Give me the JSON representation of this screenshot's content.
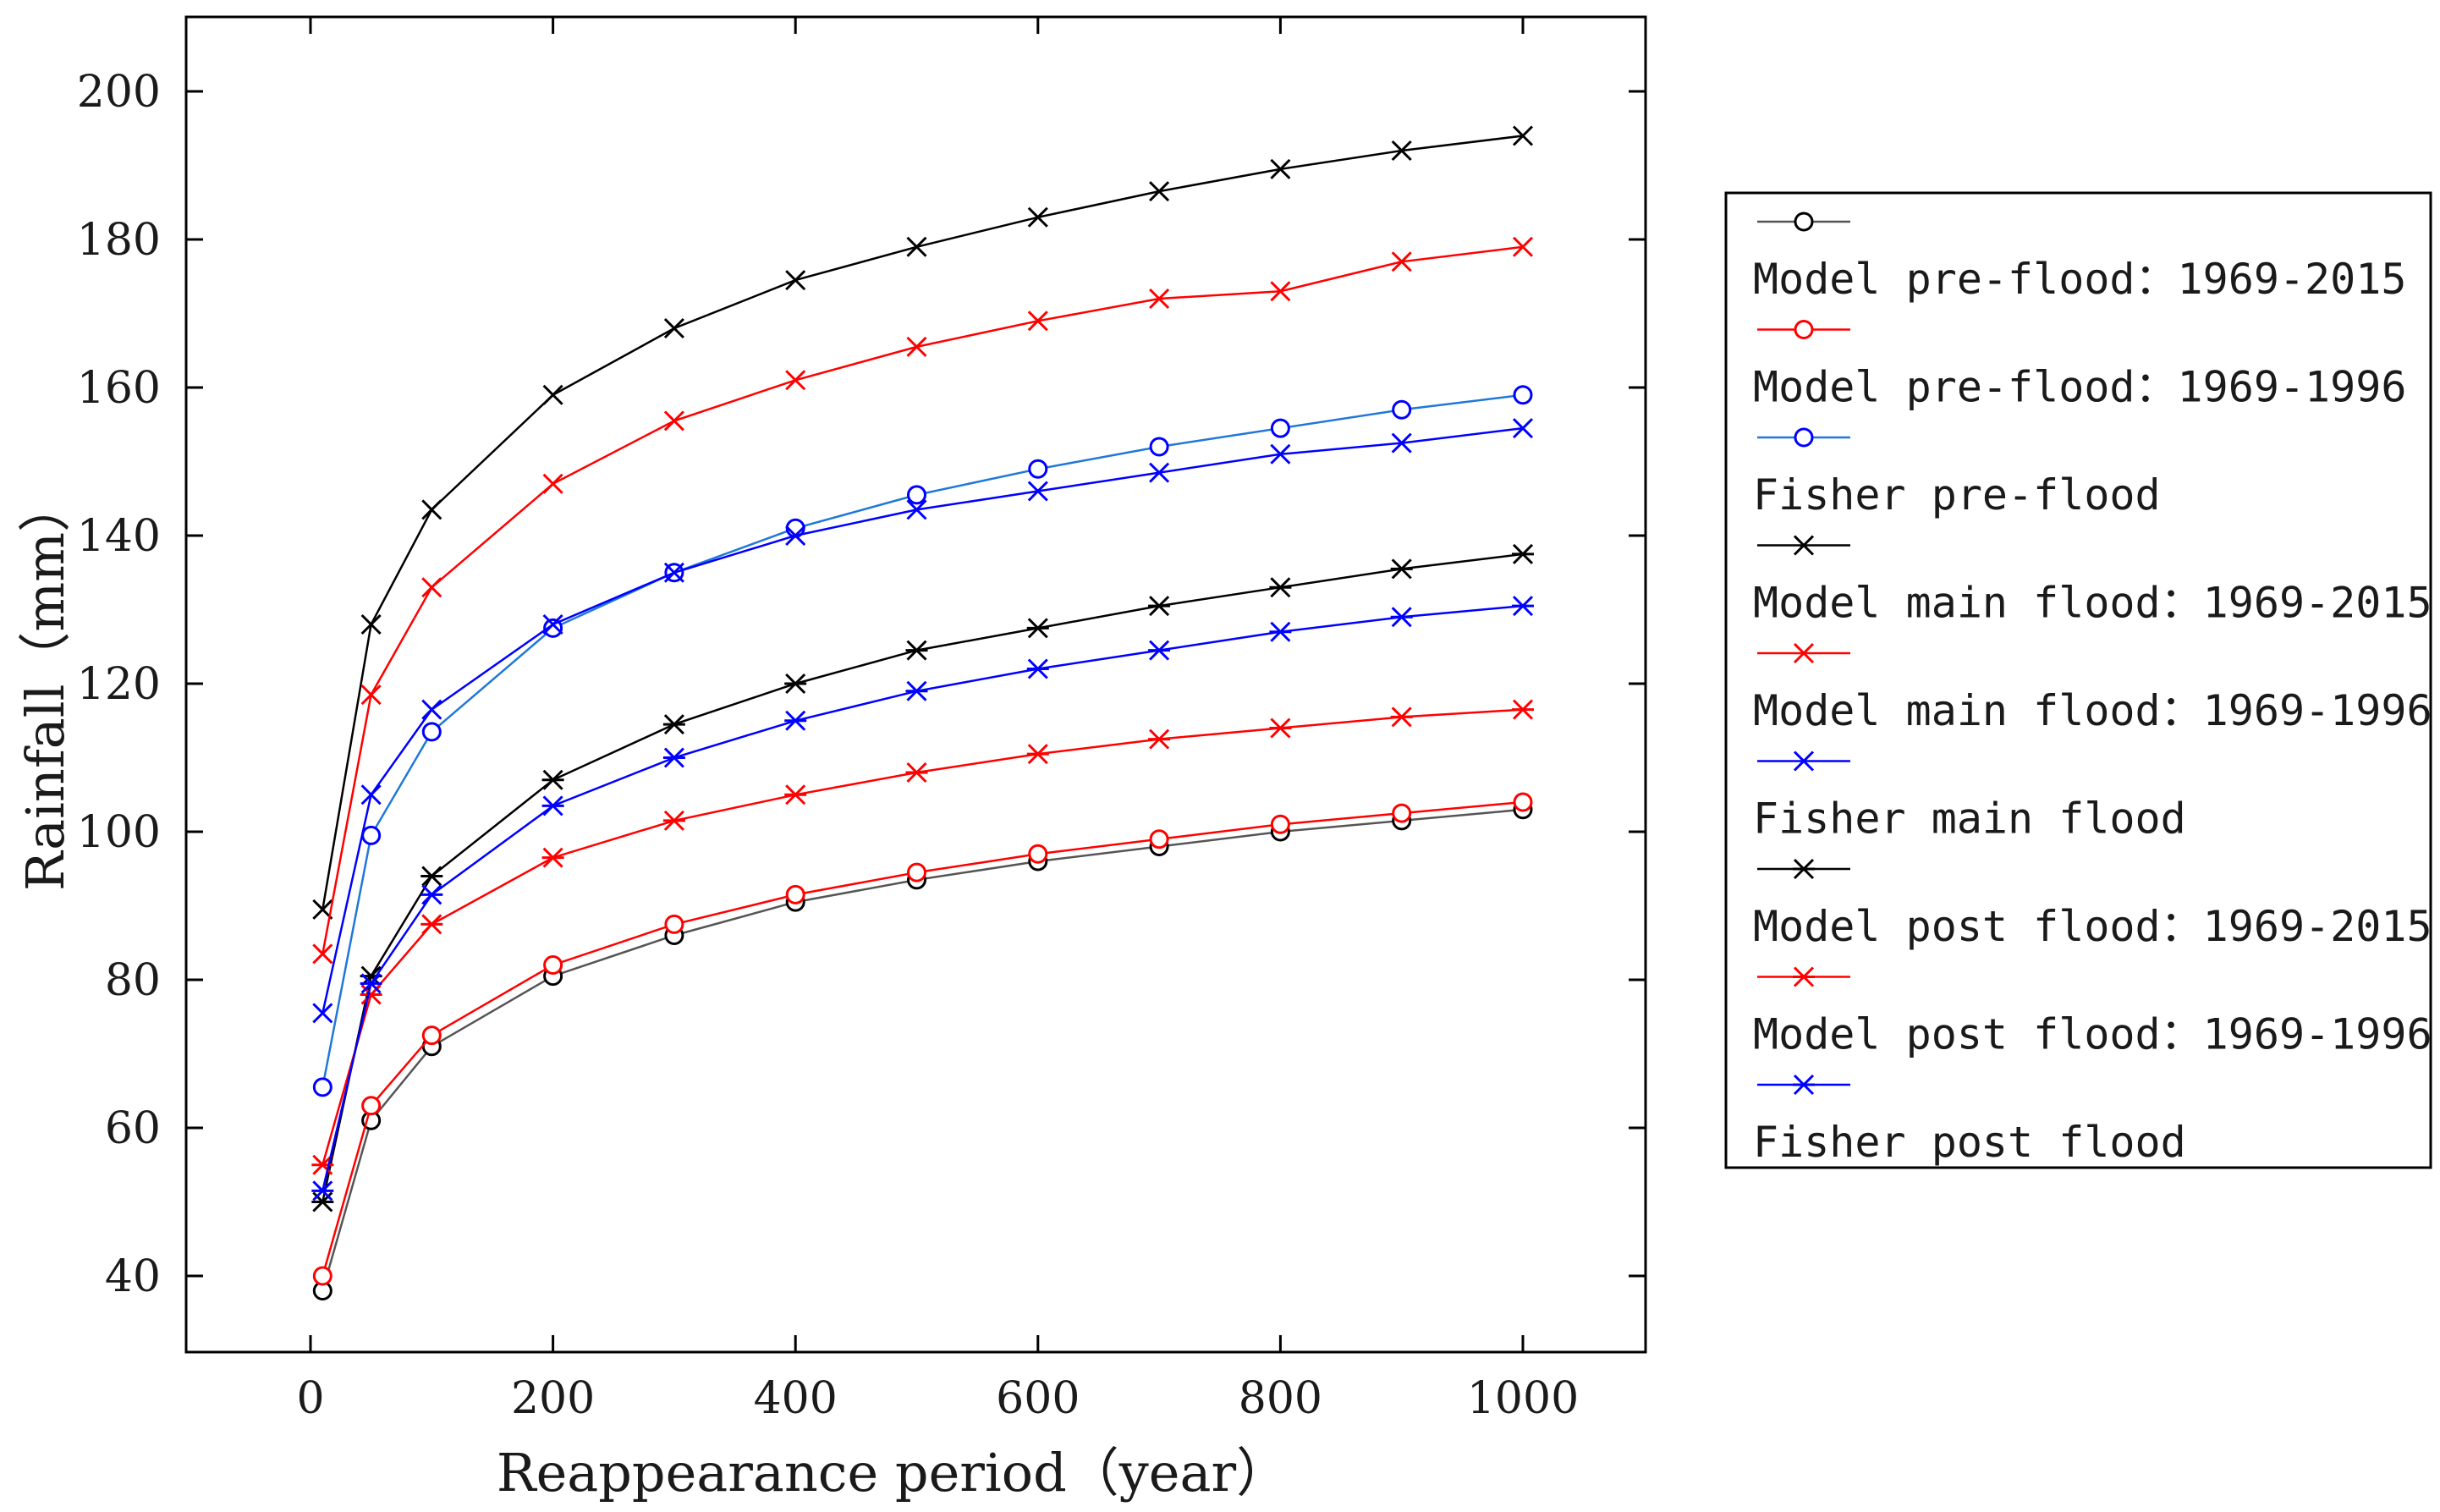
{
  "chart_data": {
    "type": "line",
    "title": "",
    "xlabel": "Reappearance period（year）",
    "ylabel": "Rainfall（mm）",
    "xlim": [
      -100,
      1100
    ],
    "ylim": [
      30,
      210
    ],
    "xticks": [
      0,
      200,
      400,
      600,
      800,
      1000
    ],
    "yticks": [
      40,
      60,
      80,
      100,
      120,
      140,
      160,
      180,
      200
    ],
    "x": [
      10,
      50,
      100,
      200,
      300,
      400,
      500,
      600,
      700,
      800,
      900,
      1000
    ],
    "legend_position": "right",
    "series": [
      {
        "name": "Model pre-flood: 1969-2015",
        "label": "Model pre-flood：1969-2015",
        "color": "#000000",
        "line_color": "#555555",
        "marker": "circle",
        "values": [
          38.0,
          61.0,
          71.0,
          80.5,
          86.0,
          90.5,
          93.5,
          96.0,
          98.0,
          100.0,
          101.5,
          103.0
        ]
      },
      {
        "name": "Model pre-flood: 1969-1996",
        "label": "Model pre-flood：1969-1996",
        "color": "#ff0000",
        "line_color": "#ff0000",
        "marker": "circle",
        "values": [
          40.0,
          63.0,
          72.5,
          82.0,
          87.5,
          91.5,
          94.5,
          97.0,
          99.0,
          101.0,
          102.5,
          104.0
        ]
      },
      {
        "name": "Fisher pre-flood",
        "label": "Fisher pre-flood",
        "color": "#0000ff",
        "line_color": "#1f78d8",
        "marker": "circle",
        "values": [
          65.5,
          99.5,
          113.5,
          127.5,
          135.0,
          141.0,
          145.5,
          149.0,
          152.0,
          154.5,
          157.0,
          159.0
        ]
      },
      {
        "name": "Model main flood: 1969-2015",
        "label": "Model main flood：1969-2015",
        "color": "#000000",
        "line_color": "#000000",
        "marker": "x",
        "values": [
          89.5,
          128.0,
          143.5,
          159.0,
          168.0,
          174.5,
          179.0,
          183.0,
          186.5,
          189.5,
          192.0,
          194.0
        ]
      },
      {
        "name": "Model main flood: 1969-1996",
        "label": "Model main flood：1969-1996",
        "color": "#ff0000",
        "line_color": "#ff0000",
        "marker": "x",
        "values": [
          83.5,
          118.5,
          133.0,
          147.0,
          155.5,
          161.0,
          165.5,
          169.0,
          172.0,
          173.0,
          177.0,
          179.0
        ]
      },
      {
        "name": "Fisher main flood",
        "label": "Fisher main flood",
        "color": "#0000ff",
        "line_color": "#0000ff",
        "marker": "x",
        "values": [
          75.5,
          105.0,
          116.5,
          128.0,
          135.0,
          140.0,
          143.5,
          146.0,
          148.5,
          151.0,
          152.5,
          154.5
        ]
      },
      {
        "name": "Model post flood: 1969-2015",
        "label": "Model post flood：1969-2015",
        "color": "#000000",
        "line_color": "#000000",
        "marker": "star",
        "values": [
          50.0,
          80.5,
          94.0,
          107.0,
          114.5,
          120.0,
          124.5,
          127.5,
          130.5,
          133.0,
          135.5,
          137.5
        ]
      },
      {
        "name": "Model post flood: 1969-1996",
        "label": "Model post flood：1969-1996",
        "color": "#ff0000",
        "line_color": "#ff0000",
        "marker": "star",
        "values": [
          55.0,
          78.0,
          87.5,
          96.5,
          101.5,
          105.0,
          108.0,
          110.5,
          112.5,
          114.0,
          115.5,
          116.5
        ]
      },
      {
        "name": "Fisher post flood",
        "label": "Fisher post flood",
        "color": "#0000ff",
        "line_color": "#0000ff",
        "marker": "star",
        "values": [
          51.5,
          79.5,
          91.5,
          103.5,
          110.0,
          115.0,
          119.0,
          122.0,
          124.5,
          127.0,
          129.0,
          130.5
        ]
      }
    ]
  }
}
